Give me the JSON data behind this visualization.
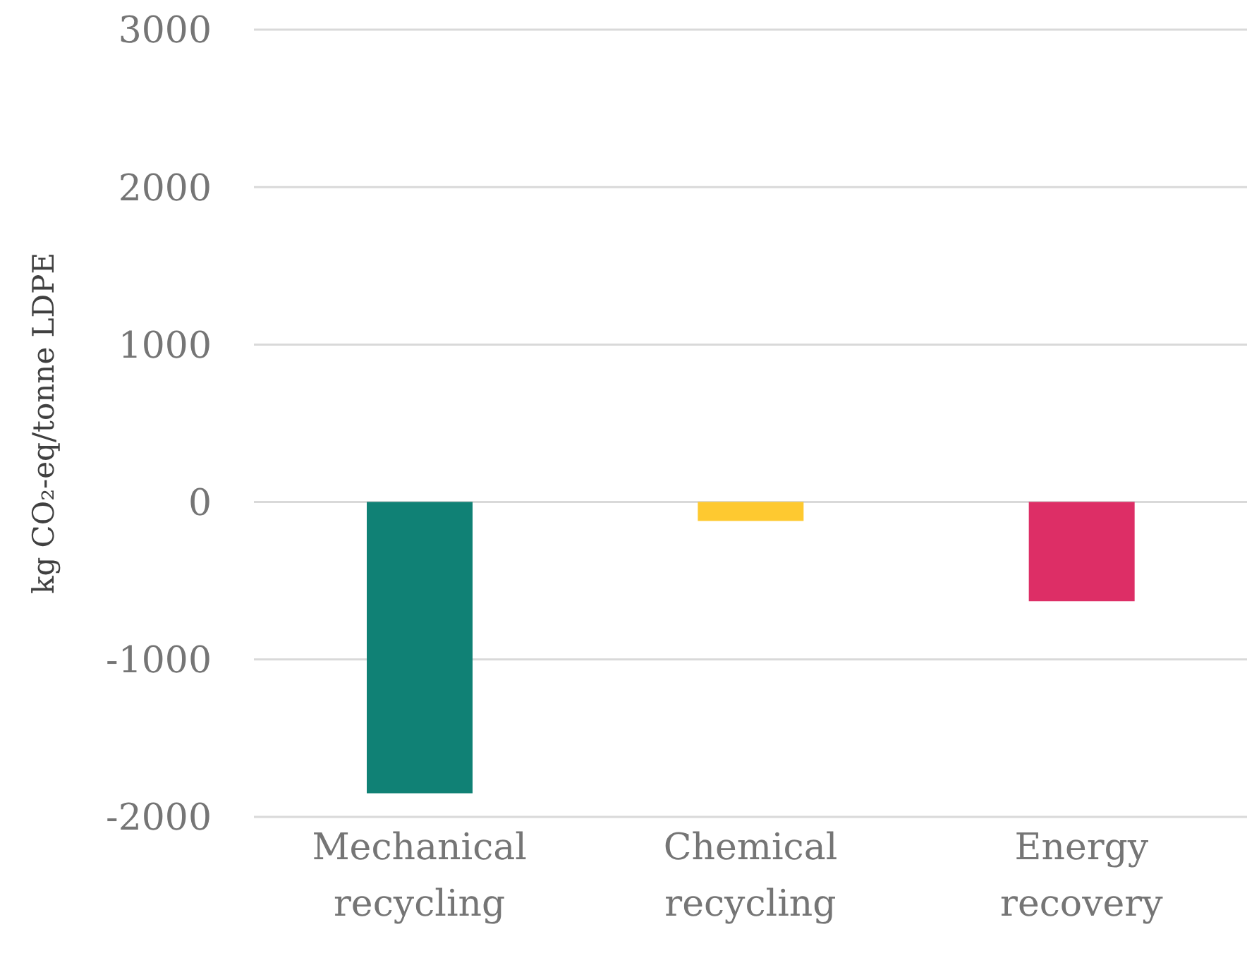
{
  "chart_data": {
    "type": "bar",
    "ylabel": "kg CO₂-eq/tonne LDPE",
    "categories": [
      "Mechanical recycling",
      "Chemical recycling",
      "Energy recovery"
    ],
    "values": [
      -1850,
      -120,
      -630
    ],
    "colors": [
      "#108175",
      "#fec930",
      "#dd2e66"
    ],
    "ylim": [
      -2000,
      3000
    ],
    "yticks": [
      -2000,
      -1000,
      0,
      1000,
      2000,
      3000
    ],
    "grid": "y",
    "legend": false
  }
}
